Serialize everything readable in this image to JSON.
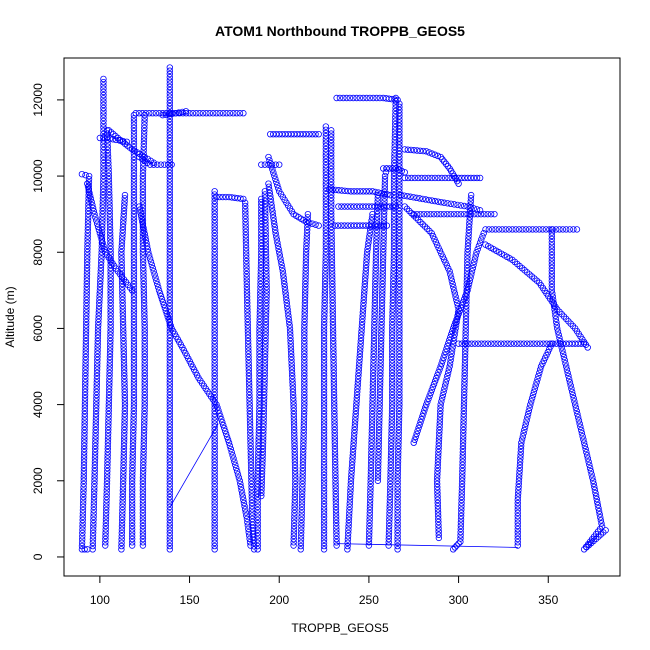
{
  "chart_data": {
    "type": "scatter",
    "title": "ATOM1 Northbound TROPPB_GEOS5",
    "xlabel": "TROPPB_GEOS5",
    "ylabel": "Altitude (m)",
    "xlim": [
      80,
      390
    ],
    "ylim": [
      -500,
      13100
    ],
    "xticks": [
      100,
      150,
      200,
      250,
      300,
      350
    ],
    "yticks": [
      0,
      2000,
      4000,
      6000,
      8000,
      10000,
      12000
    ],
    "grid": false,
    "marker": "open-circle",
    "color": "#0000ff",
    "series": [
      {
        "points": [
          [
            90,
            10050
          ],
          [
            94,
            10000
          ],
          [
            93,
            8000
          ],
          [
            92,
            5000
          ],
          [
            91,
            2000
          ],
          [
            90,
            200
          ],
          [
            93,
            200
          ]
        ]
      },
      {
        "points": [
          [
            93,
            9800
          ],
          [
            97,
            9000
          ],
          [
            103,
            8000
          ],
          [
            110,
            7500
          ],
          [
            118,
            7000
          ]
        ]
      },
      {
        "points": [
          [
            96,
            200
          ],
          [
            97,
            2000
          ],
          [
            98,
            4000
          ],
          [
            99,
            6000
          ],
          [
            101,
            8000
          ],
          [
            102,
            10000
          ],
          [
            102,
            12550
          ]
        ]
      },
      {
        "points": [
          [
            100,
            11000
          ],
          [
            104,
            11000
          ],
          [
            109,
            10950
          ],
          [
            115,
            10900
          ]
        ]
      },
      {
        "points": [
          [
            103,
            300
          ],
          [
            104,
            2000
          ],
          [
            105,
            4000
          ],
          [
            106,
            6000
          ],
          [
            106,
            8000
          ],
          [
            105,
            10000
          ],
          [
            104,
            11200
          ]
        ]
      },
      {
        "points": [
          [
            105,
            11200
          ],
          [
            110,
            11000
          ],
          [
            118,
            10700
          ],
          [
            125,
            10500
          ],
          [
            130,
            10350
          ]
        ]
      },
      {
        "points": [
          [
            112,
            200
          ],
          [
            113,
            2000
          ],
          [
            114,
            4000
          ],
          [
            113,
            6000
          ],
          [
            112,
            8000
          ],
          [
            114,
            9500
          ]
        ]
      },
      {
        "points": [
          [
            118,
            300
          ],
          [
            118,
            2000
          ],
          [
            119,
            4000
          ],
          [
            119,
            6000
          ],
          [
            119,
            8000
          ],
          [
            119,
            10000
          ],
          [
            119,
            11600
          ]
        ]
      },
      {
        "points": [
          [
            120,
            11650
          ],
          [
            135,
            11650
          ],
          [
            150,
            11650
          ],
          [
            165,
            11650
          ],
          [
            180,
            11650
          ]
        ]
      },
      {
        "points": [
          [
            124,
            300
          ],
          [
            124,
            2000
          ],
          [
            125,
            4000
          ],
          [
            125,
            6000
          ],
          [
            124,
            8000
          ],
          [
            124,
            10000
          ],
          [
            125,
            11600
          ]
        ]
      },
      {
        "points": [
          [
            122,
            10500
          ],
          [
            128,
            10300
          ],
          [
            134,
            10300
          ],
          [
            140,
            10300
          ]
        ]
      },
      {
        "points": [
          [
            122,
            9200
          ],
          [
            127,
            8000
          ],
          [
            133,
            7000
          ],
          [
            140,
            6000
          ],
          [
            146,
            5500
          ],
          [
            155,
            4700
          ],
          [
            165,
            4000
          ],
          [
            172,
            3000
          ],
          [
            178,
            2000
          ],
          [
            182,
            1000
          ],
          [
            184,
            300
          ]
        ]
      },
      {
        "points": [
          [
            139,
            200
          ],
          [
            139,
            2000
          ],
          [
            139,
            4000
          ],
          [
            139,
            6000
          ],
          [
            139,
            8000
          ],
          [
            139,
            10000
          ],
          [
            139,
            12000
          ],
          [
            139,
            12850
          ]
        ]
      },
      {
        "points": [
          [
            135,
            11600
          ],
          [
            142,
            11650
          ],
          [
            148,
            11700
          ]
        ]
      },
      {
        "points": [
          [
            164,
            200
          ],
          [
            164,
            2000
          ],
          [
            164,
            4000
          ],
          [
            164,
            6000
          ],
          [
            164,
            8000
          ],
          [
            164,
            9600
          ]
        ]
      },
      {
        "points": [
          [
            165,
            9450
          ],
          [
            172,
            9450
          ],
          [
            180,
            9400
          ]
        ]
      },
      {
        "points": [
          [
            181,
            9300
          ],
          [
            182,
            7000
          ],
          [
            183,
            5000
          ],
          [
            184,
            3000
          ],
          [
            185,
            1000
          ],
          [
            186,
            200
          ]
        ]
      },
      {
        "points": [
          [
            188,
            200
          ],
          [
            188,
            2000
          ],
          [
            189,
            4000
          ],
          [
            189,
            6000
          ],
          [
            190,
            8000
          ],
          [
            190,
            9400
          ]
        ]
      },
      {
        "points": [
          [
            190,
            10300
          ],
          [
            196,
            10300
          ],
          [
            200,
            10300
          ]
        ]
      },
      {
        "points": [
          [
            192,
            9600
          ],
          [
            193,
            7000
          ],
          [
            192,
            5000
          ],
          [
            191,
            3000
          ],
          [
            190,
            1600
          ]
        ]
      },
      {
        "points": [
          [
            195,
            11100
          ],
          [
            205,
            11100
          ],
          [
            215,
            11100
          ],
          [
            222,
            11100
          ]
        ]
      },
      {
        "points": [
          [
            194,
            9800
          ],
          [
            198,
            8500
          ],
          [
            202,
            7500
          ],
          [
            206,
            6000
          ],
          [
            208,
            4000
          ],
          [
            209,
            2000
          ],
          [
            208,
            300
          ]
        ]
      },
      {
        "points": [
          [
            194,
            10500
          ],
          [
            200,
            9600
          ],
          [
            208,
            9000
          ],
          [
            215,
            8800
          ],
          [
            222,
            8700
          ]
        ]
      },
      {
        "points": [
          [
            212,
            200
          ],
          [
            213,
            2000
          ],
          [
            214,
            4000
          ],
          [
            214,
            6000
          ],
          [
            215,
            8000
          ],
          [
            216,
            9000
          ]
        ]
      },
      {
        "points": [
          [
            225,
            200
          ],
          [
            225,
            3000
          ],
          [
            225,
            6000
          ],
          [
            226,
            8000
          ],
          [
            226,
            11300
          ]
        ]
      },
      {
        "points": [
          [
            228,
            9650
          ],
          [
            240,
            9600
          ],
          [
            252,
            9600
          ],
          [
            262,
            9500
          ]
        ]
      },
      {
        "points": [
          [
            229,
            11200
          ],
          [
            229,
            9000
          ],
          [
            230,
            6000
          ],
          [
            231,
            3000
          ],
          [
            232,
            300
          ]
        ]
      },
      {
        "points": [
          [
            232,
            12050
          ],
          [
            245,
            12050
          ],
          [
            258,
            12050
          ],
          [
            266,
            12000
          ]
        ]
      },
      {
        "points": [
          [
            231,
            8700
          ],
          [
            240,
            8700
          ],
          [
            250,
            8700
          ],
          [
            260,
            8700
          ]
        ]
      },
      {
        "points": [
          [
            233,
            9200
          ],
          [
            245,
            9200
          ],
          [
            255,
            9200
          ],
          [
            265,
            9200
          ]
        ]
      },
      {
        "points": [
          [
            238,
            200
          ],
          [
            240,
            2000
          ],
          [
            243,
            4000
          ],
          [
            246,
            6000
          ],
          [
            249,
            8000
          ],
          [
            252,
            9000
          ]
        ]
      },
      {
        "points": [
          [
            250,
            300
          ],
          [
            251,
            2000
          ],
          [
            252,
            4000
          ],
          [
            253,
            6000
          ],
          [
            254,
            8000
          ],
          [
            255,
            9500
          ]
        ]
      },
      {
        "points": [
          [
            255,
            2000
          ],
          [
            256,
            4000
          ],
          [
            257,
            6000
          ],
          [
            258,
            8000
          ],
          [
            259,
            10000
          ],
          [
            260,
            10200
          ]
        ]
      },
      {
        "points": [
          [
            258,
            10200
          ],
          [
            265,
            10200
          ],
          [
            270,
            10100
          ]
        ]
      },
      {
        "points": [
          [
            261,
            300
          ],
          [
            262,
            2000
          ],
          [
            263,
            4000
          ],
          [
            263,
            6000
          ],
          [
            264,
            8000
          ],
          [
            264,
            10000
          ],
          [
            265,
            12050
          ]
        ]
      },
      {
        "points": [
          [
            266,
            200
          ],
          [
            266,
            2000
          ],
          [
            267,
            4000
          ],
          [
            267,
            6000
          ],
          [
            267,
            8000
          ],
          [
            267,
            10000
          ],
          [
            267,
            11900
          ]
        ]
      },
      {
        "points": [
          [
            268,
            9500
          ],
          [
            280,
            9400
          ],
          [
            292,
            9300
          ],
          [
            305,
            9200
          ],
          [
            312,
            9100
          ]
        ]
      },
      {
        "points": [
          [
            270,
            10700
          ],
          [
            282,
            10650
          ],
          [
            290,
            10500
          ],
          [
            295,
            10200
          ],
          [
            300,
            9800
          ]
        ]
      },
      {
        "points": [
          [
            270,
            9950
          ],
          [
            285,
            9950
          ],
          [
            300,
            9950
          ],
          [
            312,
            9950
          ]
        ]
      },
      {
        "points": [
          [
            275,
            9000
          ],
          [
            290,
            9000
          ],
          [
            305,
            9000
          ],
          [
            320,
            9000
          ]
        ]
      },
      {
        "points": [
          [
            270,
            9200
          ],
          [
            285,
            8500
          ],
          [
            295,
            7500
          ],
          [
            300,
            6500
          ],
          [
            295,
            5000
          ],
          [
            290,
            4000
          ],
          [
            288,
            2000
          ],
          [
            289,
            500
          ]
        ]
      },
      {
        "points": [
          [
            275,
            3000
          ],
          [
            282,
            4000
          ],
          [
            290,
            5000
          ],
          [
            297,
            6000
          ],
          [
            305,
            7000
          ],
          [
            310,
            8000
          ],
          [
            314,
            8500
          ]
        ]
      },
      {
        "points": [
          [
            297,
            200
          ],
          [
            299,
            300
          ],
          [
            301,
            400
          ],
          [
            302,
            2000
          ],
          [
            303,
            4000
          ],
          [
            304,
            6000
          ],
          [
            305,
            8000
          ],
          [
            307,
            9500
          ]
        ]
      },
      {
        "points": [
          [
            300,
            5600
          ],
          [
            320,
            5600
          ],
          [
            340,
            5600
          ],
          [
            360,
            5600
          ],
          [
            370,
            5600
          ]
        ]
      },
      {
        "points": [
          [
            315,
            8600
          ],
          [
            330,
            8600
          ],
          [
            345,
            8600
          ],
          [
            360,
            8600
          ],
          [
            366,
            8600
          ]
        ]
      },
      {
        "points": [
          [
            315,
            8200
          ],
          [
            330,
            7800
          ],
          [
            345,
            7200
          ],
          [
            355,
            6500
          ],
          [
            365,
            6000
          ],
          [
            372,
            5500
          ]
        ]
      },
      {
        "points": [
          [
            333,
            300
          ],
          [
            333,
            1500
          ],
          [
            335,
            3000
          ],
          [
            340,
            4000
          ],
          [
            346,
            5000
          ],
          [
            352,
            5600
          ]
        ]
      },
      {
        "points": [
          [
            352,
            8600
          ],
          [
            352,
            7000
          ],
          [
            355,
            6000
          ],
          [
            360,
            5000
          ],
          [
            365,
            4000
          ],
          [
            370,
            3000
          ],
          [
            375,
            2000
          ],
          [
            380,
            800
          ],
          [
            370,
            200
          ],
          [
            382,
            700
          ]
        ]
      }
    ],
    "lines": [
      {
        "points": [
          [
            139,
            1300
          ],
          [
            166,
            3500
          ]
        ]
      },
      {
        "points": [
          [
            232,
            350
          ],
          [
            333,
            250
          ]
        ]
      }
    ]
  }
}
